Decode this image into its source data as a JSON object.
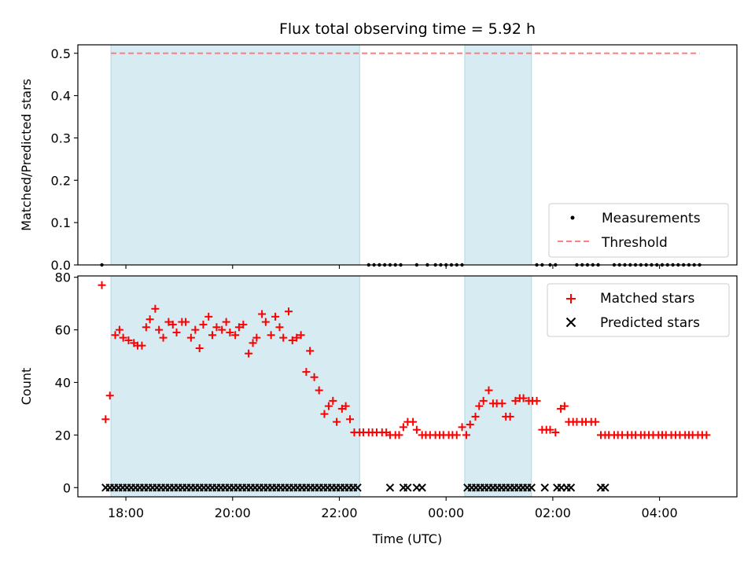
{
  "chart_data": [
    {
      "type": "scatter",
      "title": "Flux total observing time = 5.92 h",
      "ylabel": "Matched/Predicted stars",
      "xlabel": "",
      "xlim": [
        -6.9,
        5.45
      ],
      "ylim": [
        0,
        0.52
      ],
      "yticks": [
        0.0,
        0.1,
        0.2,
        0.3,
        0.4,
        0.5
      ],
      "ytick_labels": [
        "0.0",
        "0.1",
        "0.2",
        "0.3",
        "0.4",
        "0.5"
      ],
      "xticks": [
        -6,
        -4,
        -2,
        0,
        2,
        4
      ],
      "shaded_intervals": [
        [
          -6.28,
          -1.62
        ],
        [
          0.35,
          1.6
        ]
      ],
      "threshold": {
        "name": "Threshold",
        "value": 0.5,
        "x_range": [
          -6.28,
          4.75
        ],
        "color": "#ff7f7f"
      },
      "series": [
        {
          "name": "Measurements",
          "marker": "dot",
          "color": "#000000",
          "x": [
            -6.45,
            -1.45,
            -1.35,
            -1.25,
            -1.15,
            -1.05,
            -0.95,
            -0.85,
            -0.55,
            -0.35,
            -0.2,
            -0.1,
            0.0,
            0.1,
            0.2,
            0.3,
            1.7,
            1.8,
            1.95,
            2.05,
            2.45,
            2.55,
            2.65,
            2.75,
            2.85,
            3.15,
            3.25,
            3.35,
            3.45,
            3.55,
            3.65,
            3.75,
            3.85,
            3.95,
            4.05,
            4.15,
            4.25,
            4.35,
            4.45,
            4.55,
            4.65,
            4.75
          ],
          "y": [
            0,
            0,
            0,
            0,
            0,
            0,
            0,
            0,
            0,
            0,
            0,
            0,
            0,
            0,
            0,
            0,
            0,
            0,
            0,
            0,
            0,
            0,
            0,
            0,
            0,
            0,
            0,
            0,
            0,
            0,
            0,
            0,
            0,
            0,
            0,
            0,
            0,
            0,
            0,
            0,
            0,
            0
          ]
        }
      ],
      "legend": {
        "placement": "lower-right",
        "entries": [
          "Measurements",
          "Threshold"
        ]
      }
    },
    {
      "type": "scatter",
      "title": "",
      "ylabel": "Count",
      "xlabel": "Time (UTC)",
      "xlim": [
        -6.9,
        5.45
      ],
      "ylim": [
        -3.5,
        80.5
      ],
      "yticks": [
        0,
        20,
        40,
        60,
        80
      ],
      "ytick_labels": [
        "0",
        "20",
        "40",
        "60",
        "80"
      ],
      "xticks": [
        -6,
        -4,
        -2,
        0,
        2,
        4
      ],
      "xtick_labels": [
        "18:00",
        "20:00",
        "22:00",
        "00:00",
        "02:00",
        "04:00"
      ],
      "shaded_intervals": [
        [
          -6.28,
          -1.62
        ],
        [
          0.35,
          1.6
        ]
      ],
      "series": [
        {
          "name": "Matched stars",
          "marker": "plus",
          "color": "#ff0000",
          "points": [
            [
              -6.45,
              77
            ],
            [
              -6.38,
              26
            ],
            [
              -6.3,
              35
            ],
            [
              -6.2,
              58
            ],
            [
              -6.12,
              60
            ],
            [
              -6.05,
              57
            ],
            [
              -5.95,
              56
            ],
            [
              -5.85,
              55
            ],
            [
              -5.78,
              54
            ],
            [
              -5.7,
              54
            ],
            [
              -5.62,
              61
            ],
            [
              -5.55,
              64
            ],
            [
              -5.45,
              68
            ],
            [
              -5.38,
              60
            ],
            [
              -5.3,
              57
            ],
            [
              -5.2,
              63
            ],
            [
              -5.12,
              62
            ],
            [
              -5.05,
              59
            ],
            [
              -4.95,
              63
            ],
            [
              -4.88,
              63
            ],
            [
              -4.78,
              57
            ],
            [
              -4.7,
              60
            ],
            [
              -4.62,
              53
            ],
            [
              -4.55,
              62
            ],
            [
              -4.45,
              65
            ],
            [
              -4.38,
              58
            ],
            [
              -4.3,
              61
            ],
            [
              -4.2,
              60
            ],
            [
              -4.12,
              63
            ],
            [
              -4.05,
              59
            ],
            [
              -3.95,
              58
            ],
            [
              -3.88,
              61
            ],
            [
              -3.8,
              62
            ],
            [
              -3.7,
              51
            ],
            [
              -3.62,
              55
            ],
            [
              -3.55,
              57
            ],
            [
              -3.45,
              66
            ],
            [
              -3.38,
              63
            ],
            [
              -3.28,
              58
            ],
            [
              -3.2,
              65
            ],
            [
              -3.12,
              61
            ],
            [
              -3.05,
              57
            ],
            [
              -2.95,
              67
            ],
            [
              -2.88,
              56
            ],
            [
              -2.8,
              57
            ],
            [
              -2.72,
              58
            ],
            [
              -2.62,
              44
            ],
            [
              -2.55,
              52
            ],
            [
              -2.47,
              42
            ],
            [
              -2.38,
              37
            ],
            [
              -2.28,
              28
            ],
            [
              -2.2,
              31
            ],
            [
              -2.12,
              33
            ],
            [
              -2.05,
              25
            ],
            [
              -1.95,
              30
            ],
            [
              -1.88,
              31
            ],
            [
              -1.8,
              26
            ],
            [
              -1.72,
              21
            ],
            [
              -1.62,
              21
            ],
            [
              -1.55,
              21
            ],
            [
              -1.45,
              21
            ],
            [
              -1.38,
              21
            ],
            [
              -1.3,
              21
            ],
            [
              -1.2,
              21
            ],
            [
              -1.12,
              21
            ],
            [
              -1.05,
              20
            ],
            [
              -0.95,
              20
            ],
            [
              -0.88,
              20
            ],
            [
              -0.8,
              23
            ],
            [
              -0.72,
              25
            ],
            [
              -0.62,
              25
            ],
            [
              -0.55,
              22
            ],
            [
              -0.45,
              20
            ],
            [
              -0.38,
              20
            ],
            [
              -0.3,
              20
            ],
            [
              -0.2,
              20
            ],
            [
              -0.12,
              20
            ],
            [
              -0.05,
              20
            ],
            [
              0.05,
              20
            ],
            [
              0.12,
              20
            ],
            [
              0.2,
              20
            ],
            [
              0.3,
              23
            ],
            [
              0.38,
              20
            ],
            [
              0.45,
              24
            ],
            [
              0.55,
              27
            ],
            [
              0.62,
              31
            ],
            [
              0.7,
              33
            ],
            [
              0.8,
              37
            ],
            [
              0.88,
              32
            ],
            [
              0.95,
              32
            ],
            [
              1.05,
              32
            ],
            [
              1.12,
              27
            ],
            [
              1.2,
              27
            ],
            [
              1.3,
              33
            ],
            [
              1.38,
              34
            ],
            [
              1.45,
              34
            ],
            [
              1.55,
              33
            ],
            [
              1.62,
              33
            ],
            [
              1.7,
              33
            ],
            [
              1.8,
              22
            ],
            [
              1.88,
              22
            ],
            [
              1.95,
              22
            ],
            [
              2.05,
              21
            ],
            [
              2.15,
              30
            ],
            [
              2.22,
              31
            ],
            [
              2.3,
              25
            ],
            [
              2.38,
              25
            ],
            [
              2.45,
              25
            ],
            [
              2.55,
              25
            ],
            [
              2.62,
              25
            ],
            [
              2.72,
              25
            ],
            [
              2.8,
              25
            ],
            [
              2.9,
              20
            ],
            [
              2.98,
              20
            ],
            [
              3.05,
              20
            ],
            [
              3.15,
              20
            ],
            [
              3.22,
              20
            ],
            [
              3.3,
              20
            ],
            [
              3.4,
              20
            ],
            [
              3.48,
              20
            ],
            [
              3.55,
              20
            ],
            [
              3.65,
              20
            ],
            [
              3.72,
              20
            ],
            [
              3.8,
              20
            ],
            [
              3.88,
              20
            ],
            [
              3.98,
              20
            ],
            [
              4.05,
              20
            ],
            [
              4.12,
              20
            ],
            [
              4.22,
              20
            ],
            [
              4.3,
              20
            ],
            [
              4.38,
              20
            ],
            [
              4.48,
              20
            ],
            [
              4.55,
              20
            ],
            [
              4.62,
              20
            ],
            [
              4.72,
              20
            ],
            [
              4.8,
              20
            ],
            [
              4.88,
              20
            ]
          ]
        },
        {
          "name": "Predicted stars",
          "marker": "x",
          "color": "#000000",
          "x": [
            -6.38,
            -6.3,
            -6.22,
            -6.14,
            -6.06,
            -5.98,
            -5.9,
            -5.82,
            -5.74,
            -5.66,
            -5.58,
            -5.5,
            -5.42,
            -5.34,
            -5.26,
            -5.18,
            -5.1,
            -5.02,
            -4.94,
            -4.86,
            -4.78,
            -4.7,
            -4.62,
            -4.54,
            -4.46,
            -4.38,
            -4.3,
            -4.22,
            -4.14,
            -4.06,
            -3.98,
            -3.9,
            -3.82,
            -3.74,
            -3.66,
            -3.58,
            -3.5,
            -3.42,
            -3.34,
            -3.26,
            -3.18,
            -3.1,
            -3.02,
            -2.94,
            -2.86,
            -2.78,
            -2.7,
            -2.62,
            -2.54,
            -2.46,
            -2.38,
            -2.3,
            -2.22,
            -2.14,
            -2.06,
            -1.98,
            -1.9,
            -1.82,
            -1.74,
            -1.66,
            -1.05,
            -0.8,
            -0.72,
            -0.55,
            -0.45,
            0.4,
            0.48,
            0.56,
            0.64,
            0.72,
            0.8,
            0.88,
            0.96,
            1.04,
            1.12,
            1.2,
            1.28,
            1.36,
            1.44,
            1.52,
            1.6,
            1.85,
            2.08,
            2.16,
            2.26,
            2.34,
            2.9,
            2.98
          ],
          "y": [
            0,
            0,
            0,
            0,
            0,
            0,
            0,
            0,
            0,
            0,
            0,
            0,
            0,
            0,
            0,
            0,
            0,
            0,
            0,
            0,
            0,
            0,
            0,
            0,
            0,
            0,
            0,
            0,
            0,
            0,
            0,
            0,
            0,
            0,
            0,
            0,
            0,
            0,
            0,
            0,
            0,
            0,
            0,
            0,
            0,
            0,
            0,
            0,
            0,
            0,
            0,
            0,
            0,
            0,
            0,
            0,
            0,
            0,
            0,
            0,
            0,
            0,
            0,
            0,
            0,
            0,
            0,
            0,
            0,
            0,
            0,
            0,
            0,
            0,
            0,
            0,
            0,
            0,
            0,
            0,
            0,
            0,
            0,
            0,
            0,
            0,
            0,
            0
          ]
        }
      ],
      "legend": {
        "placement": "top-right",
        "entries": [
          "Matched stars",
          "Predicted stars"
        ]
      }
    }
  ]
}
